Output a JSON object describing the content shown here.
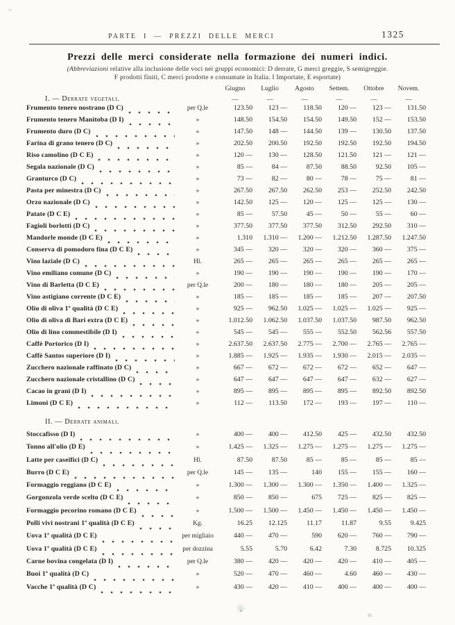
{
  "page": {
    "running_head": "PARTE I — PREZZI DELLE MERCI",
    "page_number": "1325",
    "title": "Prezzi delle merci considerate nella formazione dei numeri indici.",
    "subtitle_italic": "(Abbreviazioni",
    "subtitle_rest": " relative alla inclusione delle voci nei gruppi economici: D derrate, G merci greggie, S semigreggie.",
    "subtitle_line2": "F prodotti finiti, C merci prodotte e consumate in Italia. I Importate, E esportate)"
  },
  "table": {
    "months": [
      "Giugno",
      "Luglio",
      "Agosto",
      "Settem.",
      "Ottobre",
      "Novem."
    ],
    "month_dash": "—",
    "sections": [
      {
        "heading": "I. — Derrate vegetali.",
        "rows": [
          {
            "name": "Frumento tenero nostrano (D C)",
            "unit": "per Q.le",
            "values": [
              "123.50",
              "123 —",
              "118.50",
              "120 —",
              "123 —",
              "131.50"
            ]
          },
          {
            "name": "Frumento tenero Manitoba (D I)",
            "unit": "»",
            "values": [
              "148.50",
              "154.50",
              "154.50",
              "149.50",
              "152 —",
              "153.50"
            ]
          },
          {
            "name": "Frumento duro (D C)",
            "unit": "»",
            "values": [
              "147.50",
              "148 —",
              "144.50",
              "139 —",
              "130.50",
              "137.50"
            ]
          },
          {
            "name": "Farina di grano tenero (D C)",
            "unit": "»",
            "values": [
              "202.50",
              "200.50",
              "192.50",
              "192.50",
              "192.50",
              "194.50"
            ]
          },
          {
            "name": "Riso camolino (D C E)",
            "unit": "»",
            "values": [
              "120 —",
              "130 —",
              "128.50",
              "121.50",
              "121 —",
              "121 —"
            ]
          },
          {
            "name": "Segala nazionale (D C)",
            "unit": "»",
            "values": [
              "85 —",
              "84 —",
              "87.50",
              "88.50",
              "92.50",
              "105 —"
            ]
          },
          {
            "name": "Granturco (D C)",
            "unit": "»",
            "values": [
              "73 —",
              "82 —",
              "80 —",
              "78 —",
              "75 —",
              "81 —"
            ]
          },
          {
            "name": "Pasta per minestra (D C)",
            "unit": "»",
            "values": [
              "267.50",
              "267.50",
              "262.50",
              "253 —",
              "252.50",
              "242.50"
            ]
          },
          {
            "name": "Orzo nazionale (D C)",
            "unit": "»",
            "values": [
              "142.50",
              "125 —",
              "120 —",
              "125 —",
              "125 —",
              "130 —"
            ]
          },
          {
            "name": "Patate (D C E)",
            "unit": "»",
            "values": [
              "85 —",
              "57.50",
              "45 —",
              "50 —",
              "55 —",
              "60 —"
            ]
          },
          {
            "name": "Fagioli borlotti (D C)",
            "unit": "»",
            "values": [
              "377.50",
              "377.50",
              "377.50",
              "312.50",
              "292.50",
              "310 —"
            ]
          },
          {
            "name": "Mandorle monde (D C E)",
            "unit": "»",
            "values": [
              "1.310",
              "1.310 —",
              "1.200 —",
              "1.212.50",
              "1.287.50",
              "1.247.50"
            ]
          },
          {
            "name": "Conserva di pomodoro fina (D C E)",
            "unit": "»",
            "values": [
              "345 —",
              "320 —",
              "320 —",
              "320 —",
              "360 —",
              "375 —"
            ]
          },
          {
            "name": "Vino laziale (D C)",
            "unit": "Hl.",
            "values": [
              "265 —",
              "265 —",
              "265 —",
              "265 —",
              "265 —",
              "265 —"
            ]
          },
          {
            "name": "Vino emiliano comune (D C)",
            "unit": "»",
            "values": [
              "190 —",
              "190 —",
              "190 —",
              "190 —",
              "190 —",
              "170 —"
            ]
          },
          {
            "name": "Vino di Barletta (D C E)",
            "unit": "per Q.le",
            "values": [
              "200 —",
              "180 —",
              "180 —",
              "180 —",
              "205 —",
              "205 —"
            ]
          },
          {
            "name": "Vino astigiano corrente (D C E)",
            "unit": "»",
            "values": [
              "185 —",
              "185 —",
              "185 —",
              "185 —",
              "207 —",
              "207.50"
            ]
          },
          {
            "name": "Olio di oliva 1ª qualità (D C E)",
            "unit": "»",
            "values": [
              "925 —",
              "962.50",
              "1.025 —",
              "1.025 —",
              "1.025 —",
              "925 —"
            ]
          },
          {
            "name": "Olio di oliva di Bari extra (D C E)",
            "unit": "»",
            "values": [
              "1.012.50",
              "1.062.50",
              "1.037.50",
              "1.037.50",
              "987.50",
              "962.50"
            ]
          },
          {
            "name": "Olio di lino commestibile (D I)",
            "unit": "»",
            "values": [
              "545 —",
              "545 —",
              "555 —",
              "552.50",
              "562.56",
              "557.50"
            ]
          },
          {
            "name": "Caffè Portorico (D I)",
            "unit": "»",
            "values": [
              "2.637.50",
              "2.637.50",
              "2.775 —",
              "2.700 —",
              "2.765 —",
              "2.765 —"
            ]
          },
          {
            "name": "Caffè Santos superiore (D I)",
            "unit": "»",
            "values": [
              "1.885 —",
              "1.925 —",
              "1.935 —",
              "1.930 —",
              "2.015 —",
              "2.035 —"
            ]
          },
          {
            "name": "Zucchero nazionale raffinato (D C)",
            "unit": "»",
            "values": [
              "667 —",
              "672 —",
              "672 —",
              "672 —",
              "652 —",
              "647 —"
            ]
          },
          {
            "name": "Zucchero nazionale cristallino (D C)",
            "unit": "»",
            "values": [
              "647 —",
              "647 —",
              "647 —",
              "647 —",
              "632 —",
              "627 —"
            ]
          },
          {
            "name": "Cacao in grani (D I)",
            "unit": "»",
            "values": [
              "895 —",
              "895 —",
              "895 —",
              "895 —",
              "892.50",
              "892.50"
            ]
          },
          {
            "name": "Limoni (D C E)",
            "unit": "»",
            "values": [
              "112 —",
              "113.50",
              "172 —",
              "193 —",
              "197 —",
              "110 —"
            ]
          }
        ]
      },
      {
        "heading": "II. — Derrate animali.",
        "rows": [
          {
            "name": "Stoccafisso (D I)",
            "unit": "»",
            "values": [
              "400 —",
              "400 —",
              "412.50",
              "425 —",
              "432.50",
              "432.50"
            ]
          },
          {
            "name": "Tonno all'olio (D E)",
            "unit": "»",
            "values": [
              "1.425 —",
              "1.325 —",
              "1.275 —",
              "1.275 —",
              "1.275 —",
              "1.275 —"
            ]
          },
          {
            "name": "Latte per caseifici (D C)",
            "unit": "Hl.",
            "values": [
              "87.50",
              "87.50",
              "85 —",
              "85 —",
              "85 —",
              "85 —"
            ]
          },
          {
            "name": "Burro (D C E)",
            "unit": "per Q.le",
            "values": [
              "145 —",
              "135 —",
              "140",
              "155 —",
              "155 —",
              "160 —"
            ]
          },
          {
            "name": "Formaggio reggiano (D C E)",
            "unit": "»",
            "values": [
              "1.300 —",
              "1.300 —",
              "1.300 —",
              "1.350 —",
              "1.400 —",
              "1.325 —"
            ]
          },
          {
            "name": "Gorgonzola verde scelto (D C E)",
            "unit": "»",
            "values": [
              "850 —",
              "850 —",
              "675",
              "725 —",
              "825 —",
              "825 —"
            ]
          },
          {
            "name": "Formaggio pecorino romano (D C E)",
            "unit": "»",
            "values": [
              "1.500 —",
              "1.500 —",
              "1.450 —",
              "1.450 —",
              "1.450 —",
              "1.450 —"
            ]
          },
          {
            "name": "Polli vivi nostrani 1ª qualità (D C E)",
            "unit": "Kg.",
            "values": [
              "16.25",
              "12.125",
              "11.17",
              "11.87",
              "9.55",
              "9.425"
            ]
          },
          {
            "name": "Uova 1ª qualità (D C E)",
            "unit": "per migliaio",
            "values": [
              "440 —",
              "470 —",
              "590",
              "620 —",
              "760 —",
              "790 —"
            ]
          },
          {
            "name": "Uova 1ª qualità (D C E)",
            "unit": "per dozzina",
            "values": [
              "5.55",
              "5.70",
              "6.42",
              "7.30",
              "8.725",
              "10.325"
            ]
          },
          {
            "name": "Carne bovina congelata (D I)",
            "unit": "per Q.le",
            "values": [
              "380 —",
              "420 —",
              "420 —",
              "420 —",
              "410 —",
              "405 —"
            ]
          },
          {
            "name": "Buoi 1ª qualità (D C)",
            "unit": "»",
            "values": [
              "520 —",
              "470 —",
              "460 —",
              "4.60",
              "460 —",
              "430 —"
            ]
          },
          {
            "name": "Vacche 1ª qualità (D C)",
            "unit": "»",
            "values": [
              "430 —",
              "420 —",
              "410 —",
              "400 —",
              "400 —",
              "400 —"
            ]
          }
        ]
      }
    ]
  }
}
